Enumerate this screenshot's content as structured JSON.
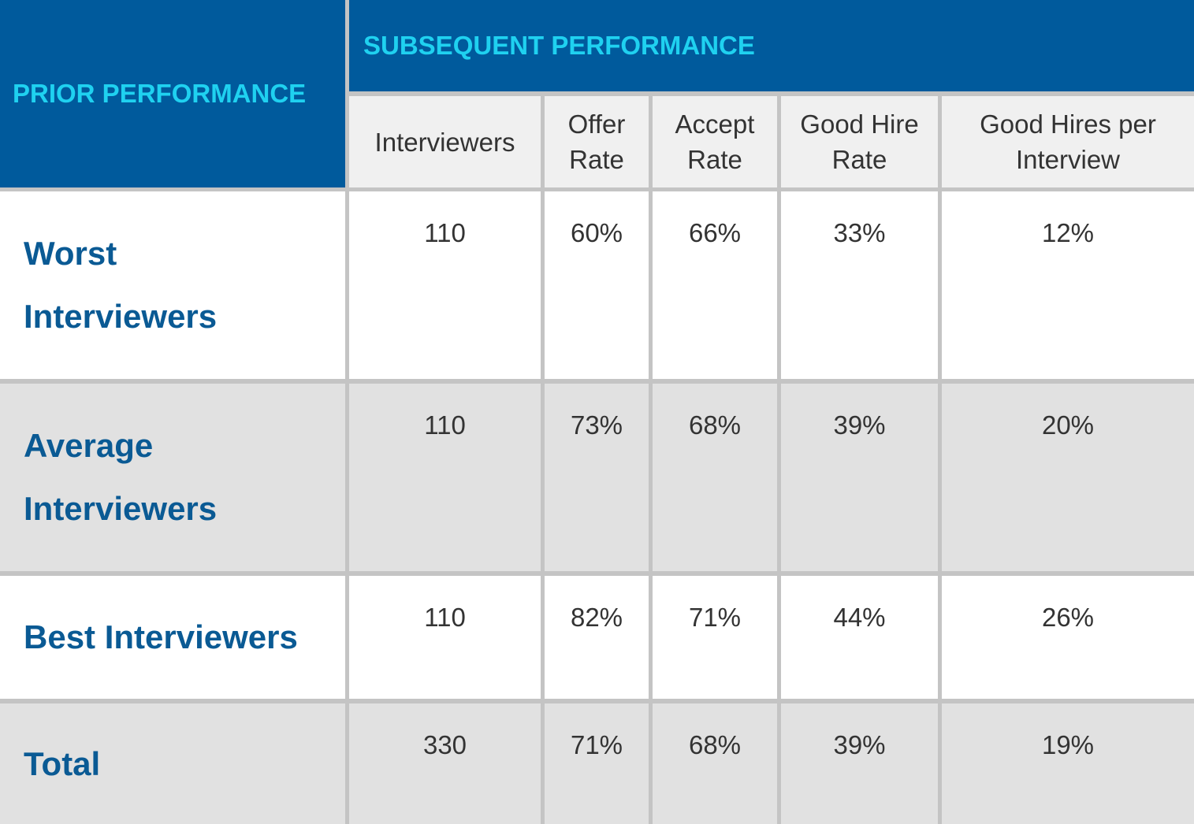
{
  "header": {
    "prior": "PRIOR PERFORMANCE",
    "subsequent": "SUBSEQUENT PERFORMANCE"
  },
  "columns": [
    "Interviewers",
    "Offer Rate",
    "Accept Rate",
    "Good Hire Rate",
    "Good Hires per Interview"
  ],
  "rows": [
    {
      "label": "Worst Interviewers",
      "values": [
        "110",
        "60%",
        "66%",
        "33%",
        "12%"
      ]
    },
    {
      "label": "Average Interviewers",
      "values": [
        "110",
        "73%",
        "68%",
        "39%",
        "20%"
      ]
    },
    {
      "label": "Best Interviewers",
      "values": [
        "110",
        "82%",
        "71%",
        "44%",
        "26%"
      ]
    },
    {
      "label": "Total",
      "values": [
        "330",
        "71%",
        "68%",
        "39%",
        "19%"
      ]
    }
  ],
  "colors": {
    "header_bg": "#005a9c",
    "header_text": "#1fd1f0",
    "label_text": "#0a5a94",
    "row_gray": "#e1e1e1",
    "row_white": "#ffffff",
    "column_head_bg": "#f0f0f0"
  }
}
